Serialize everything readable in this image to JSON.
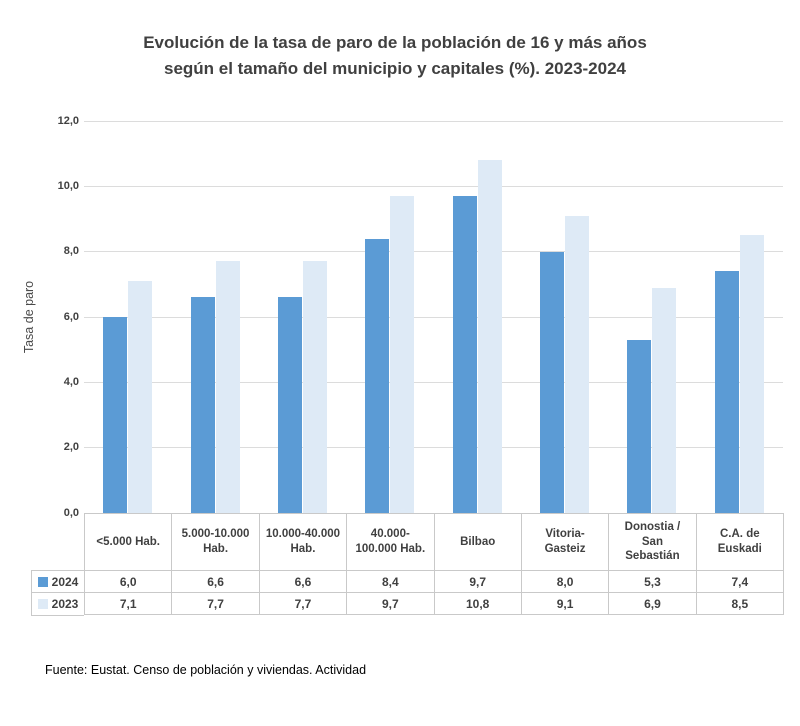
{
  "title": {
    "line1": "Evolución de la tasa de paro de la población de 16 y más años",
    "line2": "según el tamaño del municipio y capitales (%). 2023-2024"
  },
  "chart_data": {
    "type": "bar",
    "title": "Evolución de la tasa de paro de la población de 16 y más años según el tamaño del municipio y capitales (%). 2023-2024",
    "categories": [
      "<5.000 Hab.",
      "5.000-10.000 Hab.",
      "10.000-40.000 Hab.",
      "40.000-100.000 Hab.",
      "Bilbao",
      "Vitoria-Gasteiz",
      "Donostia / San Sebastián",
      "C.A. de Euskadi"
    ],
    "series": [
      {
        "name": "2024",
        "color": "#5b9bd5",
        "values": [
          6.0,
          6.6,
          6.6,
          8.4,
          9.7,
          8.0,
          5.3,
          7.4
        ],
        "values_display": [
          "6,0",
          "6,6",
          "6,6",
          "8,4",
          "9,7",
          "8,0",
          "5,3",
          "7,4"
        ]
      },
      {
        "name": "2023",
        "color": "#deeaf6",
        "values": [
          7.1,
          7.7,
          7.7,
          9.7,
          10.8,
          9.1,
          6.9,
          8.5
        ],
        "values_display": [
          "7,1",
          "7,7",
          "7,7",
          "9,7",
          "10,8",
          "9,1",
          "6,9",
          "8,5"
        ]
      }
    ],
    "xlabel": "",
    "ylabel": "Tasa de paro",
    "ylim": [
      0,
      12
    ],
    "ytick_step": 2,
    "ytick_labels": [
      "0,0",
      "2,0",
      "4,0",
      "6,0",
      "8,0",
      "10,0",
      "12,0"
    ],
    "grid": true,
    "legend_position": "table-left",
    "colors": {
      "grid": "#dcdcdc",
      "table_border": "#c9c9c9",
      "text": "#404040"
    }
  },
  "footer": {
    "source": "Fuente: Eustat. Censo de población y viviendas. Actividad"
  }
}
